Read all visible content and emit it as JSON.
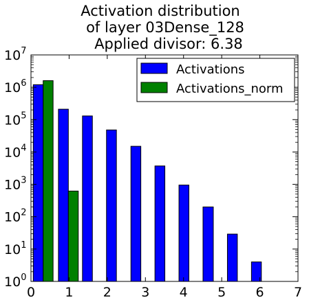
{
  "chart_data": {
    "type": "bar",
    "title_lines": [
      "Activation distribution",
      "of layer 03Dense_128",
      "Applied divisor: 6.38"
    ],
    "xlabel": "",
    "ylabel": "",
    "xlim": [
      0,
      7
    ],
    "ylim": [
      1,
      10000000
    ],
    "yscale": "log",
    "x_ticks": [
      "0",
      "1",
      "2",
      "3",
      "4",
      "5",
      "6",
      "7"
    ],
    "y_tick_base": "10",
    "y_tick_exponents": [
      "0",
      "1",
      "2",
      "3",
      "4",
      "5",
      "6",
      "7"
    ],
    "legend_position": "top-right",
    "series": [
      {
        "name": "Activations",
        "color": "#0000ff",
        "bins": [
          {
            "x0": 0.06,
            "x1": 0.32,
            "value": 1200000
          },
          {
            "x0": 0.72,
            "x1": 0.98,
            "value": 210000
          },
          {
            "x0": 1.35,
            "x1": 1.61,
            "value": 130000
          },
          {
            "x0": 1.98,
            "x1": 2.24,
            "value": 48000
          },
          {
            "x0": 2.62,
            "x1": 2.88,
            "value": 15000
          },
          {
            "x0": 3.25,
            "x1": 3.51,
            "value": 3700
          },
          {
            "x0": 3.88,
            "x1": 4.14,
            "value": 950
          },
          {
            "x0": 4.51,
            "x1": 4.78,
            "value": 200
          },
          {
            "x0": 5.15,
            "x1": 5.41,
            "value": 29
          },
          {
            "x0": 5.78,
            "x1": 6.04,
            "value": 4
          }
        ]
      },
      {
        "name": "Activations_norm",
        "color": "#008000",
        "bins": [
          {
            "x0": 0.32,
            "x1": 0.58,
            "value": 1600000
          },
          {
            "x0": 0.98,
            "x1": 1.24,
            "value": 620
          }
        ]
      }
    ]
  }
}
